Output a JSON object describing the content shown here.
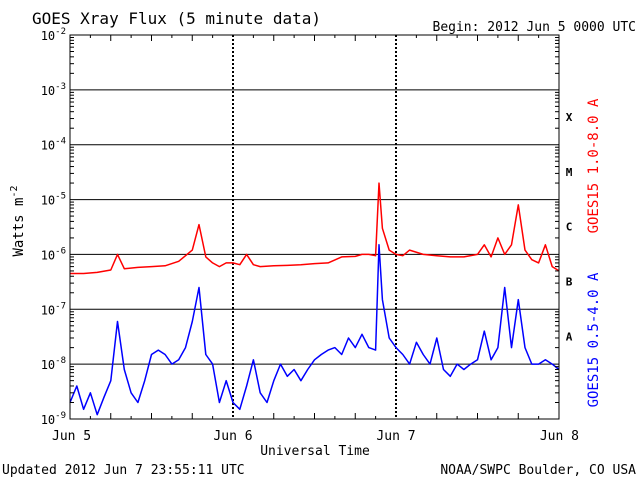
{
  "chart_data": {
    "type": "line",
    "title": "GOES Xray Flux (5 minute data)",
    "begin_label": "Begin:  2012 Jun 5 0000 UTC",
    "xlabel": "Universal Time",
    "ylabel_base": "Watts m",
    "ylabel_exp": "-2",
    "footer_left": "Updated 2012 Jun  7 23:55:11 UTC",
    "footer_right": "NOAA/SWPC Boulder, CO USA",
    "y_scale": "log",
    "ylim": [
      1e-09,
      0.01
    ],
    "xlim_hours": [
      0,
      72
    ],
    "x_ticks": [
      {
        "label": "Jun 5",
        "hour": 0
      },
      {
        "label": "Jun 6",
        "hour": 24
      },
      {
        "label": "Jun 7",
        "hour": 48
      },
      {
        "label": "Jun 8",
        "hour": 72
      }
    ],
    "y_ticks": [
      {
        "base": "10",
        "exp": "-2",
        "value": 0.01
      },
      {
        "base": "10",
        "exp": "-3",
        "value": 0.001
      },
      {
        "base": "10",
        "exp": "-4",
        "value": 0.0001
      },
      {
        "base": "10",
        "exp": "-5",
        "value": 1e-05
      },
      {
        "base": "10",
        "exp": "-6",
        "value": 1e-06
      },
      {
        "base": "10",
        "exp": "-7",
        "value": 1e-07
      },
      {
        "base": "10",
        "exp": "-8",
        "value": 1e-08
      },
      {
        "base": "10",
        "exp": "-9",
        "value": 1e-09
      }
    ],
    "flare_classes": [
      {
        "label": "X",
        "value": 0.00032
      },
      {
        "label": "M",
        "value": 3.2e-05
      },
      {
        "label": "C",
        "value": 3.2e-06
      },
      {
        "label": "B",
        "value": 3.2e-07
      },
      {
        "label": "A",
        "value": 3.2e-08
      }
    ],
    "grid": true,
    "series": [
      {
        "name": "GOES15 1.0-8.0 A",
        "color": "#ff0000",
        "x_hours": [
          0,
          2,
          4,
          6,
          7,
          8,
          10,
          12,
          14,
          16,
          18,
          19,
          20,
          21,
          22,
          23,
          24,
          25,
          26,
          27,
          28,
          30,
          32,
          34,
          36,
          38,
          40,
          42,
          43,
          44,
          45,
          45.5,
          46,
          47,
          48,
          49,
          50,
          52,
          54,
          56,
          58,
          60,
          61,
          62,
          63,
          64,
          65,
          66,
          67,
          68,
          69,
          70,
          71,
          72
        ],
        "values": [
          4.5e-07,
          4.5e-07,
          4.7e-07,
          5.2e-07,
          1e-06,
          5.5e-07,
          5.8e-07,
          6e-07,
          6.2e-07,
          7.5e-07,
          1.2e-06,
          3.5e-06,
          9e-07,
          7e-07,
          6e-07,
          7e-07,
          7e-07,
          6.5e-07,
          1e-06,
          6.5e-07,
          6e-07,
          6.2e-07,
          6.3e-07,
          6.5e-07,
          6.8e-07,
          7e-07,
          9e-07,
          9.2e-07,
          1e-06,
          1e-06,
          9.5e-07,
          2e-05,
          3e-06,
          1.2e-06,
          1e-06,
          9.5e-07,
          1.2e-06,
          1e-06,
          9.5e-07,
          9e-07,
          9e-07,
          1e-06,
          1.5e-06,
          9e-07,
          2e-06,
          1e-06,
          1.5e-06,
          8e-06,
          1.2e-06,
          8e-07,
          7e-07,
          1.5e-06,
          6e-07,
          5e-07
        ]
      },
      {
        "name": "GOES15 0.5-4.0 A",
        "color": "#0000ff",
        "x_hours": [
          0,
          1,
          2,
          3,
          4,
          5,
          6,
          7,
          8,
          9,
          10,
          11,
          12,
          13,
          14,
          15,
          16,
          17,
          18,
          19,
          20,
          21,
          22,
          23,
          24,
          25,
          26,
          27,
          28,
          29,
          30,
          31,
          32,
          33,
          34,
          35,
          36,
          37,
          38,
          39,
          40,
          41,
          42,
          43,
          44,
          45,
          45.5,
          46,
          47,
          48,
          49,
          50,
          51,
          52,
          53,
          54,
          55,
          56,
          57,
          58,
          59,
          60,
          61,
          62,
          63,
          64,
          65,
          66,
          67,
          68,
          69,
          70,
          71,
          72
        ],
        "values": [
          2e-09,
          4e-09,
          1.5e-09,
          3e-09,
          1.2e-09,
          2.5e-09,
          5e-09,
          6e-08,
          8e-09,
          3e-09,
          2e-09,
          5e-09,
          1.5e-08,
          1.8e-08,
          1.5e-08,
          1e-08,
          1.2e-08,
          2e-08,
          6e-08,
          2.5e-07,
          1.5e-08,
          1e-08,
          2e-09,
          5e-09,
          2e-09,
          1.5e-09,
          4e-09,
          1.2e-08,
          3e-09,
          2e-09,
          5e-09,
          1e-08,
          6e-09,
          8e-09,
          5e-09,
          8e-09,
          1.2e-08,
          1.5e-08,
          1.8e-08,
          2e-08,
          1.5e-08,
          3e-08,
          2e-08,
          3.5e-08,
          2e-08,
          1.8e-08,
          1.5e-06,
          1.5e-07,
          3e-08,
          2e-08,
          1.5e-08,
          1e-08,
          2.5e-08,
          1.5e-08,
          1e-08,
          3e-08,
          8e-09,
          6e-09,
          1e-08,
          8e-09,
          1e-08,
          1.2e-08,
          4e-08,
          1.2e-08,
          2e-08,
          2.5e-07,
          2e-08,
          1.5e-07,
          2e-08,
          1e-08,
          1e-08,
          1.2e-08,
          1e-08,
          8e-09
        ]
      }
    ]
  }
}
